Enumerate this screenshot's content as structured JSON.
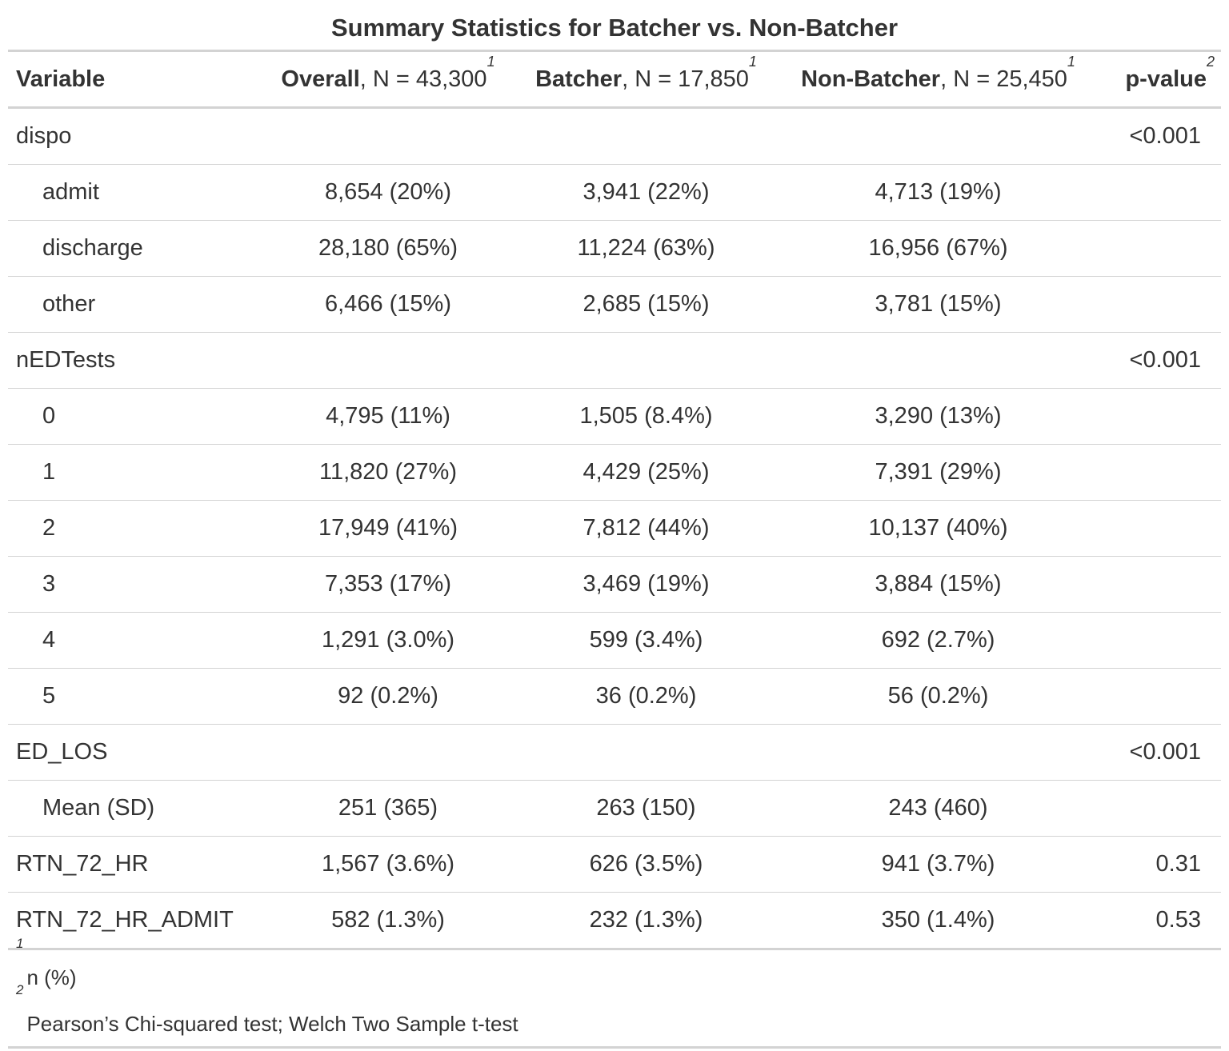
{
  "title": "Summary Statistics for Batcher vs. Non-Batcher",
  "header": {
    "variable": "Variable",
    "overall_bold": "Overall",
    "overall_n": ", N = 43,300",
    "batcher_bold": "Batcher",
    "batcher_n": ", N = 17,850",
    "nonbatcher_bold": "Non-Batcher",
    "nonbatcher_n": ", N = 25,450",
    "pvalue": "p-value",
    "sup1": "1",
    "sup2": "2"
  },
  "rows": [
    {
      "label": "dispo",
      "overall": "",
      "batcher": "",
      "nonbatcher": "",
      "p": "<0.001"
    },
    {
      "label": "admit",
      "overall": "8,654 (20%)",
      "batcher": "3,941 (22%)",
      "nonbatcher": "4,713 (19%)",
      "p": ""
    },
    {
      "label": "discharge",
      "overall": "28,180 (65%)",
      "batcher": "11,224 (63%)",
      "nonbatcher": "16,956 (67%)",
      "p": ""
    },
    {
      "label": "other",
      "overall": "6,466 (15%)",
      "batcher": "2,685 (15%)",
      "nonbatcher": "3,781 (15%)",
      "p": ""
    },
    {
      "label": "nEDTests",
      "overall": "",
      "batcher": "",
      "nonbatcher": "",
      "p": "<0.001"
    },
    {
      "label": "0",
      "overall": "4,795 (11%)",
      "batcher": "1,505 (8.4%)",
      "nonbatcher": "3,290 (13%)",
      "p": ""
    },
    {
      "label": "1",
      "overall": "11,820 (27%)",
      "batcher": "4,429 (25%)",
      "nonbatcher": "7,391 (29%)",
      "p": ""
    },
    {
      "label": "2",
      "overall": "17,949 (41%)",
      "batcher": "7,812 (44%)",
      "nonbatcher": "10,137 (40%)",
      "p": ""
    },
    {
      "label": "3",
      "overall": "7,353 (17%)",
      "batcher": "3,469 (19%)",
      "nonbatcher": "3,884 (15%)",
      "p": ""
    },
    {
      "label": "4",
      "overall": "1,291 (3.0%)",
      "batcher": "599 (3.4%)",
      "nonbatcher": "692 (2.7%)",
      "p": ""
    },
    {
      "label": "5",
      "overall": "92 (0.2%)",
      "batcher": "36 (0.2%)",
      "nonbatcher": "56 (0.2%)",
      "p": ""
    },
    {
      "label": "ED_LOS",
      "overall": "",
      "batcher": "",
      "nonbatcher": "",
      "p": "<0.001"
    },
    {
      "label": "Mean (SD)",
      "overall": "251 (365)",
      "batcher": "263 (150)",
      "nonbatcher": "243 (460)",
      "p": ""
    },
    {
      "label": "RTN_72_HR",
      "overall": "1,567 (3.6%)",
      "batcher": "626 (3.5%)",
      "nonbatcher": "941 (3.7%)",
      "p": "0.31"
    },
    {
      "label": "RTN_72_HR_ADMIT",
      "overall": "582 (1.3%)",
      "batcher": "232 (1.3%)",
      "nonbatcher": "350 (1.4%)",
      "p": "0.53"
    }
  ],
  "footnotes": [
    {
      "mark": "1",
      "text": "n (%)"
    },
    {
      "mark": "2",
      "text": "Pearson’s Chi-squared test; Welch Two Sample t-test"
    }
  ]
}
